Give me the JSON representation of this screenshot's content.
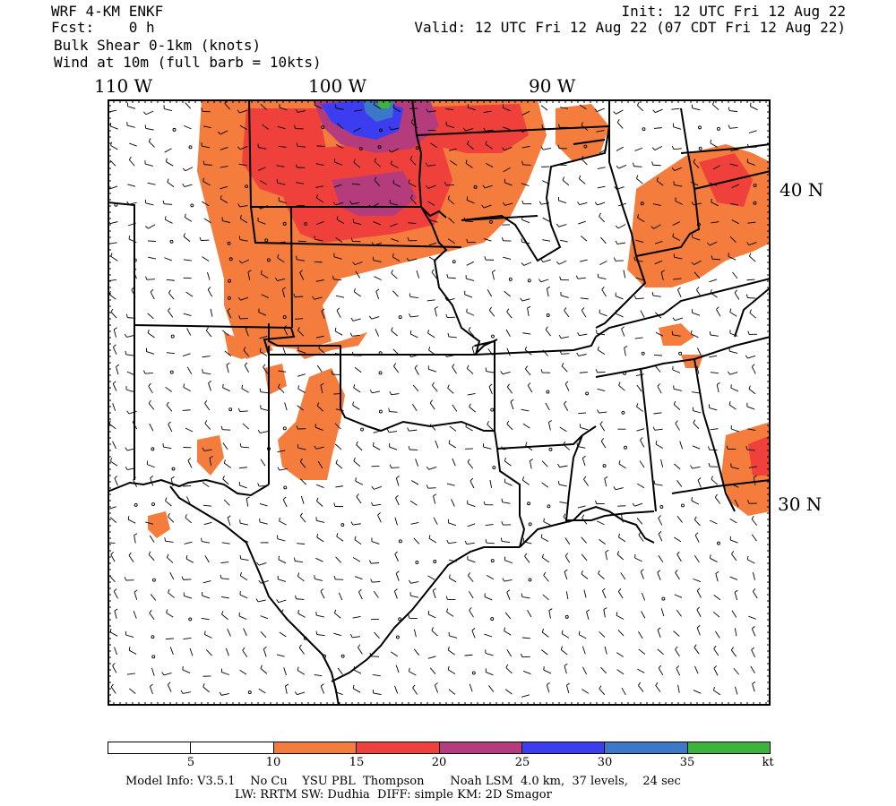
{
  "header": {
    "left": {
      "model": "WRF 4-KM ENKF",
      "fcst": "Fcst:    0 h",
      "field": "Bulk Shear 0-1km (knots)",
      "wind": "Wind at 10m (full barb = 10kts)"
    },
    "right": {
      "init": "Init: 12 UTC Fri 12 Aug 22",
      "valid": "Valid: 12 UTC Fri 12 Aug 22 (07 CDT Fri 12 Aug 22)"
    }
  },
  "axes": {
    "lon_labels": [
      "110 W",
      "100 W",
      "90 W"
    ],
    "lat_labels": [
      "40 N",
      "30 N"
    ]
  },
  "colorbar": {
    "unit": "kt",
    "ticks": [
      "5",
      "10",
      "15",
      "20",
      "25",
      "30",
      "35"
    ],
    "colors": [
      "#ffffff",
      "#ffffff",
      "#f47c3c",
      "#f0403c",
      "#b43c7c",
      "#3c3cf0",
      "#3c78c8",
      "#3cb43c"
    ]
  },
  "footer": {
    "line1": "Model Info: V3.5.1    No Cu    YSU PBL  Thompson       Noah LSM  4.0 km,  37 levels,    24 sec",
    "line2": "LW: RRTM SW: Dudhia  DIFF: simple KM: 2D Smagor"
  }
}
